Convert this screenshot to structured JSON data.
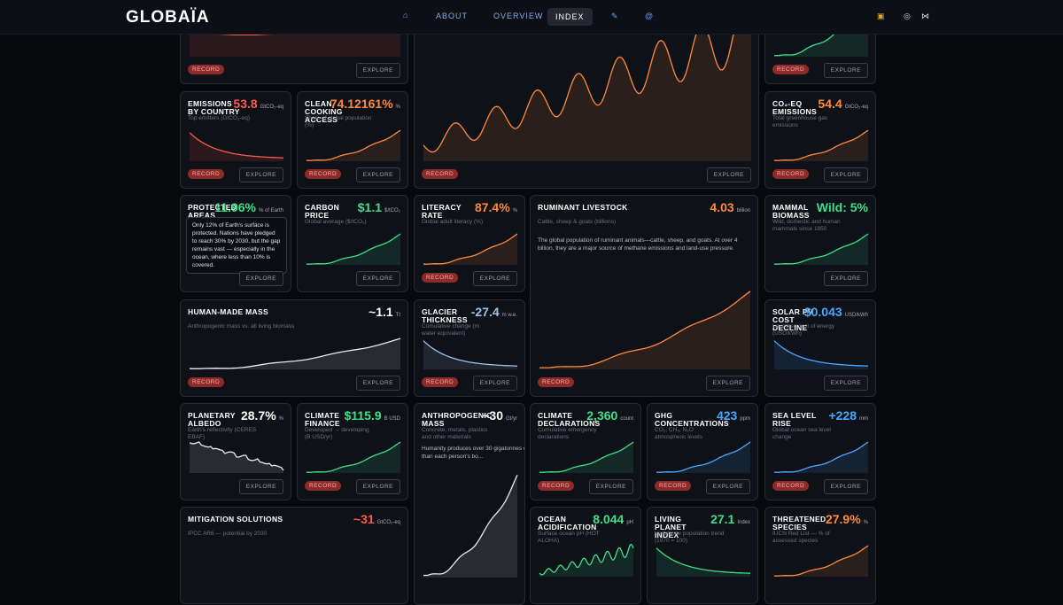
{
  "nav": {
    "logo": "GLOBAÏA",
    "links": [
      "ABOUT",
      "OVERVIEW",
      "INDEX"
    ]
  },
  "cards": [
    {
      "badge": "RECORD",
      "button": "EXPLORE"
    },
    {
      "badge": "RECORD",
      "button": "EXPLORE"
    },
    {
      "badge": "RECORD",
      "button": "EXPLORE"
    },
    {
      "title": "EMISSIONS BY COUNTRY",
      "value": "53.8",
      "unit": "GtCO₂-eq",
      "subtitle": "Top emitters (GtCO₂-eq)",
      "badge": "RECORD",
      "button": "EXPLORE"
    },
    {
      "title": "CLEAN COOKING ACCESS",
      "value": "74.12161%",
      "unit": "%",
      "subtitle": "Share of global population (%)",
      "badge": "RECORD",
      "button": "EXPLORE"
    },
    {
      "title": "CO₂-EQ EMISSIONS",
      "value": "54.4",
      "unit": "GtCO₂-eq",
      "subtitle": "Total greenhouse gas emissions",
      "badge": "RECORD",
      "button": "EXPLORE"
    },
    {
      "title": "PROTECTED AREAS",
      "value": "11.96%",
      "unit": "% of Earth",
      "description": "Only 12% of Earth's surface is protected. Nations have pledged to reach 30% by 2030, but the gap remains vast — especially in the ocean, where less than 10% is covered.",
      "button": "EXPLORE"
    },
    {
      "title": "CARBON PRICE",
      "value": "$1.1",
      "unit": "$/tCO₂",
      "subtitle": "Global average ($/tCO₂)",
      "button": "EXPLORE"
    },
    {
      "title": "LITERACY RATE",
      "value": "87.4%",
      "unit": "%",
      "subtitle": "Global adult literacy (%)",
      "badge": "RECORD",
      "button": "EXPLORE"
    },
    {
      "title": "RUMINANT LIVESTOCK",
      "value": "4.03",
      "unit": "billion",
      "subtitle": "Cattle, sheep & goats (billions)",
      "description": "The global population of ruminant animals—cattle, sheep, and goats. At over 4 billion, they are a major source of methane emissions and land-use pressure.",
      "badge": "RECORD",
      "button": "EXPLORE"
    },
    {
      "title": "MAMMAL BIOMASS",
      "value": "Wild: 5%",
      "subtitle": "Wild, domestic and human mammals since 1850",
      "button": "EXPLORE"
    },
    {
      "title": "HUMAN-MADE MASS",
      "value": "~1.1",
      "unit": "Tt",
      "subtitle": "Anthropogenic mass vs. all living biomass",
      "badge": "RECORD",
      "button": "EXPLORE"
    },
    {
      "title": "GLACIER THICKNESS",
      "value": "-27.4",
      "unit": "m w.e.",
      "subtitle": "Cumulative change (m water equivalent)",
      "badge": "RECORD",
      "button": "EXPLORE"
    },
    {
      "title": "SOLAR PV COST DECLINE",
      "value": "$0.043",
      "unit": "USD/kWh",
      "subtitle": "Levelized cost of energy (USD/kWh)",
      "button": "EXPLORE"
    },
    {
      "title": "PLANETARY ALBEDO",
      "value": "28.7%",
      "unit": "%",
      "subtitle": "Earth's reflectivity (CERES EBAF)",
      "button": "EXPLORE"
    },
    {
      "title": "CLIMATE FINANCE",
      "value": "$115.9",
      "unit": "B USD",
      "subtitle": "Developed → developing (B USD/yr)",
      "badge": "RECORD",
      "button": "EXPLORE"
    },
    {
      "title": "ANTHROPOGENIC MASS",
      "value": "~30",
      "unit": "Gt/yr",
      "subtitle": "Concrete, metals, plastics and other materials",
      "description": "Humanity produces over 30 gigatonnes of new material every year — more than each person's bo..."
    },
    {
      "title": "CLIMATE DECLARATIONS",
      "value": "2,360",
      "unit": "count",
      "subtitle": "Cumulative emergency declarations",
      "badge": "RECORD",
      "button": "EXPLORE"
    },
    {
      "title": "GHG CONCENTRATIONS",
      "value": "423",
      "unit": "ppm",
      "subtitle": "CO₂, CH₄, N₂O atmospheric levels",
      "badge": "RECORD",
      "button": "EXPLORE"
    },
    {
      "title": "SEA LEVEL RISE",
      "value": "+228",
      "unit": "mm",
      "subtitle": "Global ocean sea level change",
      "badge": "RECORD",
      "button": "EXPLORE"
    },
    {
      "title": "MITIGATION SOLUTIONS",
      "value": "~31",
      "unit": "GtCO₂-eq",
      "subtitle": "IPCC AR6 — potential by 2030"
    },
    {
      "title": "OCEAN ACIDIFICATION",
      "value": "8.044",
      "unit": "pH",
      "subtitle": "Surface ocean pH (HOT ALOHA)"
    },
    {
      "title": "LIVING PLANET INDEX",
      "value": "27.1",
      "unit": "Index",
      "subtitle": "Vertebrate population trend (1970 = 100)"
    },
    {
      "title": "THREATENED SPECIES",
      "value": "27.9%",
      "unit": "%",
      "subtitle": "IUCN Red List — % of assessed species"
    }
  ]
}
